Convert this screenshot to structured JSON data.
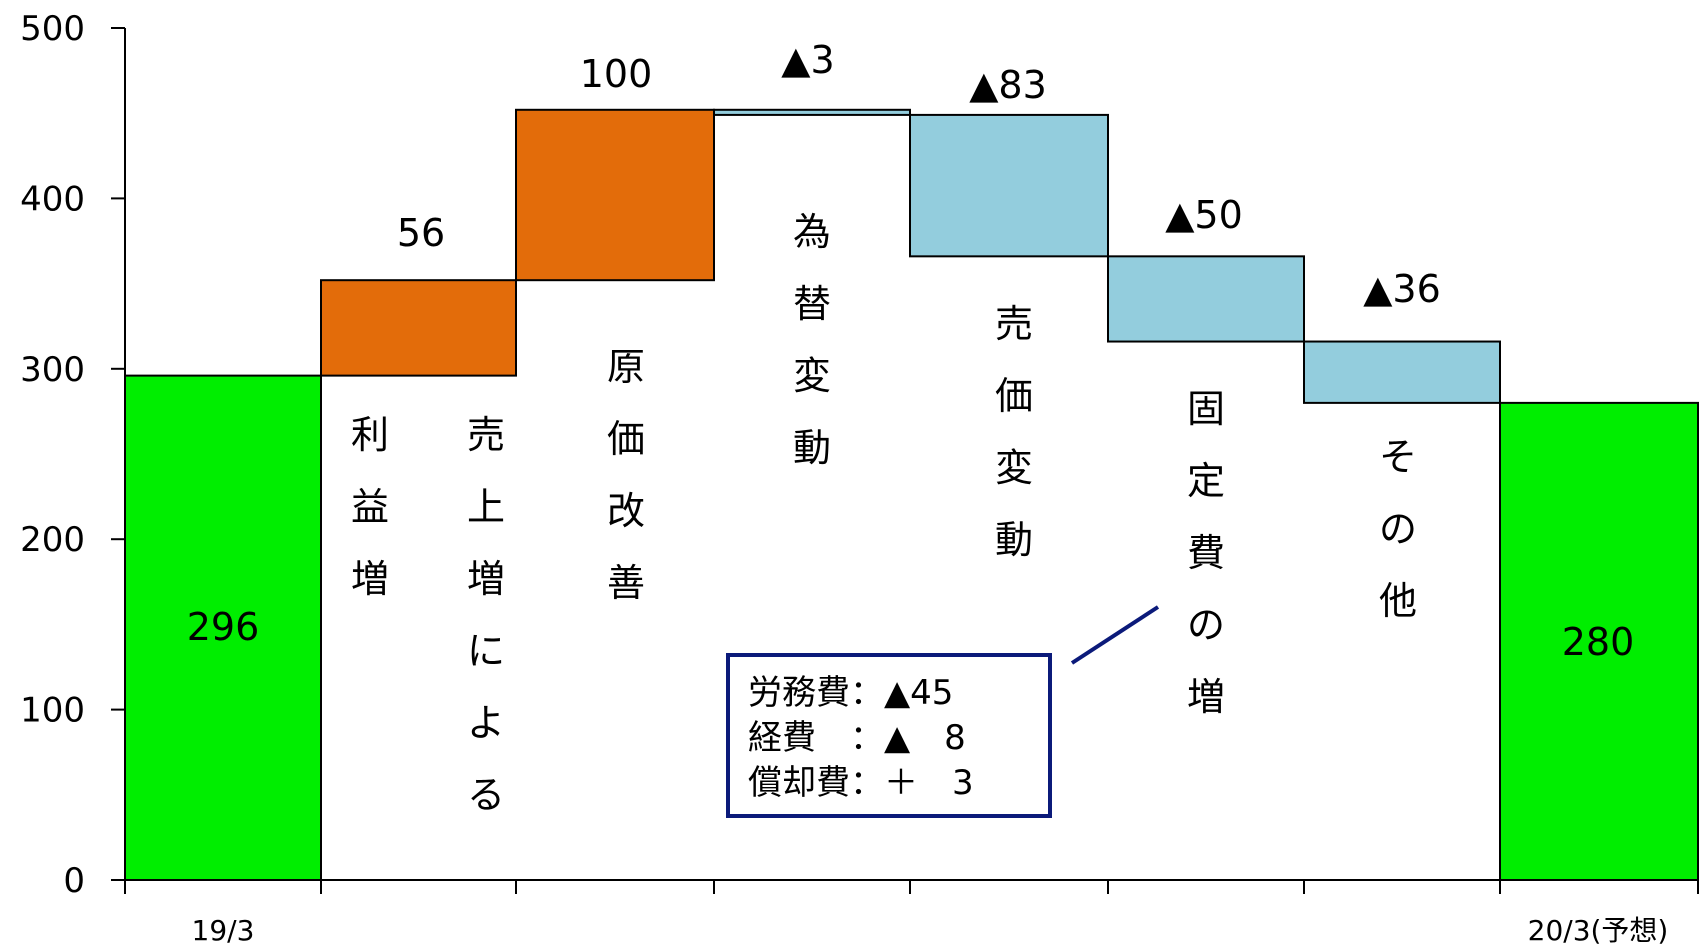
{
  "chart_data": {
    "type": "waterfall",
    "ylim": [
      0,
      500
    ],
    "y_ticks": [
      "0",
      "100",
      "200",
      "300",
      "400",
      "500"
    ],
    "categories": [
      "19/3",
      "売上増による利益増",
      "原価改善",
      "為替変動",
      "売価変動",
      "固定費の増",
      "その他",
      "20/3(予想)"
    ],
    "category_axis_labels": [
      "19/3",
      "",
      "",
      "",
      "",
      "",
      "",
      "20/3(予想)"
    ],
    "steps": [
      {
        "kind": "total",
        "start": 0,
        "end": 296,
        "label": "296",
        "color": "#00ee00",
        "text_lines": []
      },
      {
        "kind": "increase",
        "start": 296,
        "end": 352,
        "label": "56",
        "color": "#e36c0a",
        "text_lines": [
          "利益増",
          "売上増による"
        ]
      },
      {
        "kind": "increase",
        "start": 352,
        "end": 452,
        "label": "100",
        "color": "#e36c0a",
        "text_lines": [
          "原価改善"
        ]
      },
      {
        "kind": "decrease",
        "start": 452,
        "end": 449,
        "label": "▲3",
        "color": "#93cddd",
        "text_lines": [
          "為替変動"
        ]
      },
      {
        "kind": "decrease",
        "start": 449,
        "end": 366,
        "label": "▲83",
        "color": "#93cddd",
        "text_lines": [
          "売価変動"
        ]
      },
      {
        "kind": "decrease",
        "start": 366,
        "end": 316,
        "label": "▲50",
        "color": "#93cddd",
        "text_lines": [
          "固定費の増"
        ]
      },
      {
        "kind": "decrease",
        "start": 316,
        "end": 280,
        "label": "▲36",
        "color": "#93cddd",
        "text_lines": [
          "その他"
        ]
      },
      {
        "kind": "total",
        "start": 0,
        "end": 280,
        "label": "280",
        "color": "#00ee00",
        "text_lines": []
      }
    ]
  },
  "note": {
    "lines": [
      "労務費：▲45",
      "経費　：▲　8",
      "償却費：＋　3"
    ],
    "border_color": "#0b1a7a"
  }
}
